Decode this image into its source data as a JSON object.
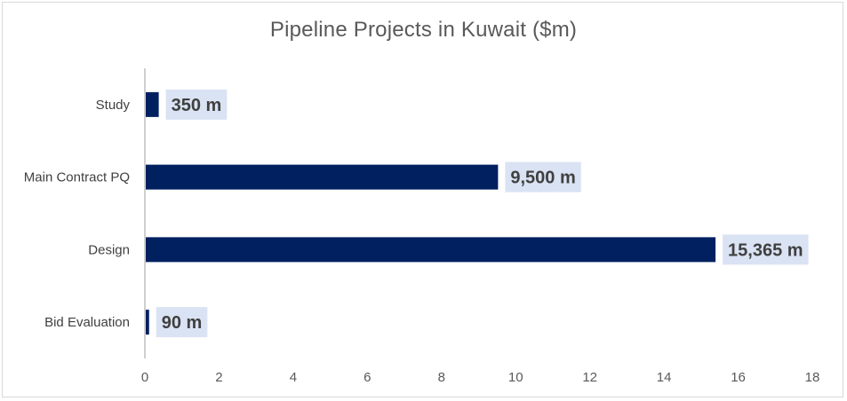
{
  "chart_data": {
    "type": "bar",
    "orientation": "horizontal",
    "title": "Pipeline Projects in Kuwait ($m)",
    "categories": [
      "Study",
      "Main Contract PQ",
      "Design",
      "Bid Evaluation"
    ],
    "values": [
      0.35,
      9.5,
      15.365,
      0.09
    ],
    "data_labels": [
      "350 m",
      "9,500 m",
      "15,365 m",
      "90 m"
    ],
    "x_ticks": [
      "0",
      "2",
      "4",
      "6",
      "8",
      "10",
      "12",
      "14",
      "16",
      "18"
    ],
    "xlim": [
      0,
      18
    ],
    "grid": false,
    "legend": "none",
    "colors": {
      "bar": "#002060",
      "label_bg": "#dae3f3",
      "axis": "#bfbfbf"
    }
  }
}
